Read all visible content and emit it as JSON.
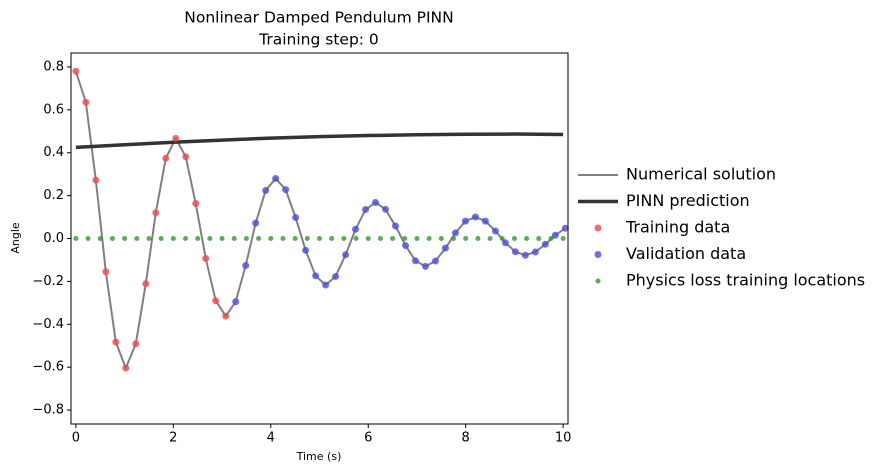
{
  "chart_data": {
    "type": "line",
    "title": [
      "Nonlinear Damped Pendulum PINN",
      "Training step: 0"
    ],
    "x_label": "Time (s)",
    "y_label": "Angle",
    "xlim": [
      -0.1,
      10.1
    ],
    "ylim": [
      -0.865,
      0.865
    ],
    "xticks": [
      0,
      2,
      4,
      6,
      8,
      10
    ],
    "yticks": [
      {
        "value": -0.8,
        "label": "−0.8"
      },
      {
        "value": -0.6,
        "label": "−0.6"
      },
      {
        "value": -0.4,
        "label": "−0.4"
      },
      {
        "value": -0.2,
        "label": "−0.2"
      },
      {
        "value": 0,
        "label": "0.0"
      },
      0.2,
      0.4,
      0.6,
      0.8
    ],
    "legend": "outside-right",
    "series": [
      {
        "name": "Numerical solution",
        "kind": "line",
        "color": "#808080",
        "width": 2,
        "x": [
          0,
          0.205,
          0.41,
          0.615,
          0.82,
          1.025,
          1.23,
          1.435,
          1.64,
          1.845,
          2.05,
          2.255,
          2.46,
          2.665,
          2.87,
          3.075,
          3.28,
          3.485,
          3.69,
          3.895,
          4.1,
          4.305,
          4.51,
          4.715,
          4.92,
          5.125,
          5.33,
          5.535,
          5.74,
          5.945,
          6.15,
          6.355,
          6.56,
          6.765,
          6.97,
          7.175,
          7.38,
          7.585,
          7.79,
          7.995,
          8.2,
          8.405,
          8.61,
          8.815,
          9.02,
          9.225,
          9.43,
          9.635,
          9.84,
          10.045
        ],
        "values": [
          0.78,
          0.635,
          0.272,
          -0.155,
          -0.483,
          -0.604,
          -0.491,
          -0.211,
          0.12,
          0.374,
          0.467,
          0.381,
          0.163,
          -0.093,
          -0.29,
          -0.362,
          -0.295,
          -0.126,
          0.072,
          0.224,
          0.28,
          0.228,
          0.098,
          -0.055,
          -0.174,
          -0.217,
          -0.177,
          -0.076,
          0.043,
          0.135,
          0.168,
          0.136,
          0.058,
          -0.033,
          -0.104,
          -0.13,
          -0.105,
          -0.045,
          0.026,
          0.081,
          0.1,
          0.081,
          0.035,
          -0.02,
          -0.062,
          -0.078,
          -0.063,
          -0.027,
          0.015,
          0.048
        ]
      },
      {
        "name": "PINN prediction",
        "kind": "line",
        "color": "#333333",
        "width": 3.5,
        "x": [
          0,
          1,
          2,
          3,
          4,
          5,
          6,
          7,
          8,
          9,
          10
        ],
        "values": [
          0.425,
          0.437,
          0.449,
          0.459,
          0.468,
          0.475,
          0.48,
          0.484,
          0.486,
          0.487,
          0.485
        ]
      },
      {
        "name": "Training data",
        "kind": "scatter",
        "color": "#e84c4c",
        "x": [
          0,
          0.205,
          0.41,
          0.615,
          0.82,
          1.025,
          1.23,
          1.435,
          1.64,
          1.845,
          2.05,
          2.255,
          2.46,
          2.665,
          2.87,
          3.075
        ],
        "values": [
          0.78,
          0.635,
          0.272,
          -0.155,
          -0.483,
          -0.604,
          -0.491,
          -0.211,
          0.12,
          0.374,
          0.467,
          0.381,
          0.163,
          -0.093,
          -0.29,
          -0.362
        ]
      },
      {
        "name": "Validation data",
        "kind": "scatter",
        "color": "#4f4fd6",
        "x": [
          3.28,
          3.485,
          3.69,
          3.895,
          4.1,
          4.305,
          4.51,
          4.715,
          4.92,
          5.125,
          5.33,
          5.535,
          5.74,
          5.945,
          6.15,
          6.355,
          6.56,
          6.765,
          6.97,
          7.175,
          7.38,
          7.585,
          7.79,
          7.995,
          8.2,
          8.405,
          8.61,
          8.815,
          9.02,
          9.225,
          9.43,
          9.635,
          9.84,
          10.045
        ],
        "values": [
          -0.295,
          -0.126,
          0.072,
          0.224,
          0.28,
          0.228,
          0.098,
          -0.055,
          -0.174,
          -0.217,
          -0.177,
          -0.076,
          0.043,
          0.135,
          0.168,
          0.136,
          0.058,
          -0.033,
          -0.104,
          -0.13,
          -0.105,
          -0.045,
          0.026,
          0.081,
          0.1,
          0.081,
          0.035,
          -0.02,
          -0.062,
          -0.078,
          -0.063,
          -0.027,
          0.015,
          0.048
        ]
      },
      {
        "name": "Physics loss training locations",
        "kind": "scatter",
        "color": "#2e9a2e",
        "size": 2.5,
        "x": [
          0,
          0.25,
          0.5,
          0.75,
          1,
          1.25,
          1.5,
          1.75,
          2,
          2.25,
          2.5,
          2.75,
          3,
          3.25,
          3.5,
          3.75,
          4,
          4.25,
          4.5,
          4.75,
          5,
          5.25,
          5.5,
          5.75,
          6,
          6.25,
          6.5,
          6.75,
          7,
          7.25,
          7.5,
          7.75,
          8,
          8.25,
          8.5,
          8.75,
          9,
          9.25,
          9.5,
          9.75,
          10
        ],
        "values": [
          0,
          0,
          0,
          0,
          0,
          0,
          0,
          0,
          0,
          0,
          0,
          0,
          0,
          0,
          0,
          0,
          0,
          0,
          0,
          0,
          0,
          0,
          0,
          0,
          0,
          0,
          0,
          0,
          0,
          0,
          0,
          0,
          0,
          0,
          0,
          0,
          0,
          0,
          0,
          0,
          0
        ]
      }
    ]
  }
}
